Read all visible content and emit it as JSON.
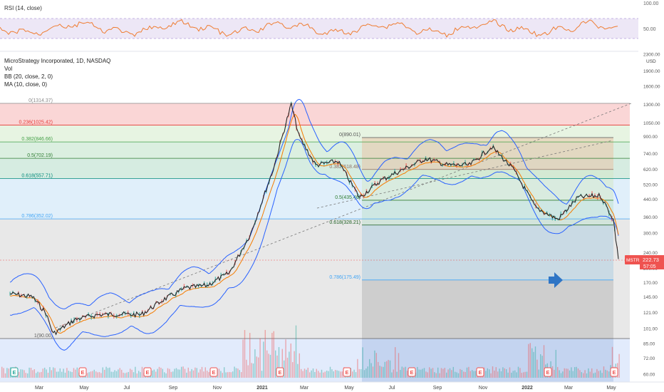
{
  "rsi_panel": {
    "label": "RSI (14, close)",
    "axis_ticks": [
      "100.00",
      "50.00"
    ]
  },
  "price_panel": {
    "title": "MicroStrategy Incorporated, 1D, NASDAQ",
    "indicators": [
      "Vol",
      "BB (20, close, 2, 0)",
      "MA (10, close, 0)"
    ],
    "currency": "USD",
    "ticker": "MSTR",
    "last_price": "222.73",
    "countdown": "57:05"
  },
  "colors": {
    "price_line": "#262626",
    "bollinger": "#2962ff",
    "moving_average": "#f57c00",
    "rsi_line": "#ef7d32",
    "rsi_band": "#ede7f6",
    "last_price_badge": "#ef5350",
    "arrow": "#2f75c5"
  },
  "icons": [
    "earnings-marker-icon",
    "arrow-right-icon",
    "dividend-marker-icon"
  ],
  "chart_data": {
    "type": "line",
    "scale": "log",
    "x_ticks": [
      "Mar",
      "May",
      "Jul",
      "Sep",
      "Nov",
      "2021",
      "Mar",
      "May",
      "Jul",
      "Sep",
      "Nov",
      "2022",
      "Mar",
      "May"
    ],
    "y_ticks": [
      "2300.00",
      "1900.00",
      "1600.00",
      "1300.00",
      "1050.00",
      "900.00",
      "740.00",
      "620.00",
      "520.00",
      "440.00",
      "360.00",
      "300.00",
      "240.00",
      "200.00",
      "170.00",
      "145.00",
      "121.00",
      "101.00",
      "85.00",
      "72.00",
      "60.00"
    ],
    "fib_primary": [
      {
        "label": "0(1314.37)",
        "level": 0,
        "price": 1314.37
      },
      {
        "label": "0.236(1025.42)",
        "level": 0.236,
        "price": 1025.42
      },
      {
        "label": "0.382(846.66)",
        "level": 0.382,
        "price": 846.66
      },
      {
        "label": "0.5(702.19)",
        "level": 0.5,
        "price": 702.19
      },
      {
        "label": "0.618(557.71)",
        "level": 0.618,
        "price": 557.71
      },
      {
        "label": "0.786(352.02)",
        "level": 0.786,
        "price": 352.02
      },
      {
        "label": "1(90.00)",
        "level": 1,
        "price": 90.0
      }
    ],
    "fib_secondary": [
      {
        "label": "0(890.01)",
        "level": 0,
        "price": 890.01
      },
      {
        "label": "0.382(618.48)",
        "level": 0.382,
        "price": 618.48
      },
      {
        "label": "0.5(435.46)",
        "level": 0.5,
        "price": 435.46
      },
      {
        "label": "0.618(328.21)",
        "level": 0.618,
        "price": 328.21
      },
      {
        "label": "0.786(175.49)",
        "level": 0.786,
        "price": 175.49
      }
    ],
    "series": [
      {
        "name": "MSTR",
        "points": [
          [
            "2020-01",
            150
          ],
          [
            "2020-02",
            145
          ],
          [
            "2020-03-05",
            120
          ],
          [
            "2020-03-15",
            95
          ],
          [
            "2020-04",
            112
          ],
          [
            "2020-05",
            118
          ],
          [
            "2020-06",
            119
          ],
          [
            "2020-07",
            118
          ],
          [
            "2020-08",
            140
          ],
          [
            "2020-09",
            160
          ],
          [
            "2020-10",
            165
          ],
          [
            "2020-11",
            190
          ],
          [
            "2020-12",
            300
          ],
          [
            "2021-01",
            620
          ],
          [
            "2021-02-09",
            1300
          ],
          [
            "2021-02-20",
            900
          ],
          [
            "2021-03",
            650
          ],
          [
            "2021-04",
            680
          ],
          [
            "2021-05",
            450
          ],
          [
            "2021-06",
            550
          ],
          [
            "2021-07",
            620
          ],
          [
            "2021-08",
            700
          ],
          [
            "2021-09",
            650
          ],
          [
            "2021-10",
            650
          ],
          [
            "2021-11",
            800
          ],
          [
            "2021-12",
            620
          ],
          [
            "2022-01",
            400
          ],
          [
            "2022-02",
            350
          ],
          [
            "2022-03",
            450
          ],
          [
            "2022-04",
            460
          ],
          [
            "2022-05-03",
            350
          ],
          [
            "2022-05-10",
            222.73
          ]
        ]
      }
    ]
  }
}
